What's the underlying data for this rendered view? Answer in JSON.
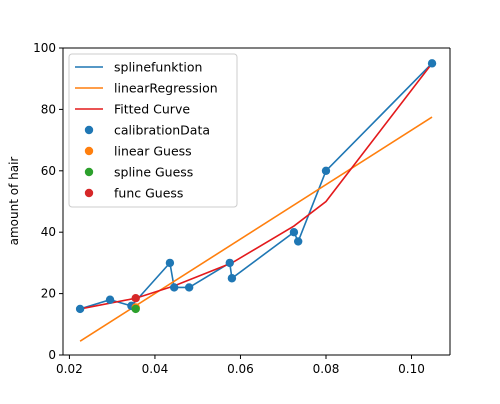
{
  "chart_data": {
    "type": "line",
    "title": "",
    "xlabel": "",
    "ylabel": "amount of hair",
    "xlim": [
      0.0185,
      0.109
    ],
    "ylim": [
      0,
      100
    ],
    "grid": false,
    "legend": "top-left",
    "xticks": [
      0.02,
      0.04,
      0.06,
      0.08,
      0.1
    ],
    "xtick_labels": [
      "0.02",
      "0.04",
      "0.06",
      "0.08",
      "0.10"
    ],
    "yticks": [
      0,
      20,
      40,
      60,
      80,
      100
    ],
    "ytick_labels": [
      "0",
      "20",
      "40",
      "60",
      "80",
      "100"
    ],
    "series": [
      {
        "name": "splinefunktion",
        "kind": "line",
        "color": "#1f77b4",
        "x": [
          0.0225,
          0.0295,
          0.0345,
          0.0435,
          0.0445,
          0.048,
          0.0575,
          0.058,
          0.0725,
          0.0735,
          0.08,
          0.1048
        ],
        "y": [
          15,
          18,
          16,
          30,
          22,
          22,
          30,
          25,
          40,
          37,
          60,
          95
        ]
      },
      {
        "name": "linearRegression",
        "kind": "line",
        "color": "#ff7f0e",
        "x": [
          0.0225,
          0.1048
        ],
        "y": [
          4.5,
          77.5
        ]
      },
      {
        "name": "Fitted Curve",
        "kind": "line",
        "color": "#e31a1c",
        "x": [
          0.0225,
          0.0355,
          0.0445,
          0.058,
          0.0725,
          0.08,
          0.1048
        ],
        "y": [
          15,
          18.5,
          22.5,
          30,
          42,
          50,
          95
        ]
      },
      {
        "name": "calibrationData",
        "kind": "scatter",
        "color": "#1f77b4",
        "x": [
          0.0225,
          0.0295,
          0.0345,
          0.0435,
          0.0445,
          0.048,
          0.0575,
          0.058,
          0.0725,
          0.0735,
          0.08,
          0.1048
        ],
        "y": [
          15,
          18,
          16,
          30,
          22,
          22,
          30,
          25,
          40,
          37,
          60,
          95
        ]
      },
      {
        "name": "linear Guess",
        "kind": "scatter",
        "color": "#ff7f0e",
        "x": [
          0.0355
        ],
        "y": [
          15.5
        ]
      },
      {
        "name": "spline Guess",
        "kind": "scatter",
        "color": "#2ca02c",
        "x": [
          0.0355
        ],
        "y": [
          15
        ]
      },
      {
        "name": "func Guess",
        "kind": "scatter",
        "color": "#d62728",
        "x": [
          0.0355
        ],
        "y": [
          18.5
        ]
      }
    ]
  }
}
